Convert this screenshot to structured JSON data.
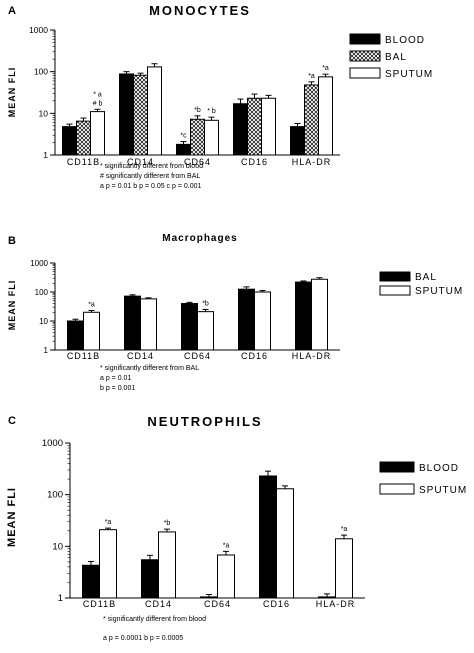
{
  "chart_data": [
    {
      "type": "bar",
      "panel_letter": "A",
      "title": "MONOCYTES",
      "ylabel": "MEAN FLI",
      "yscale": "log",
      "ylim": [
        1,
        1000
      ],
      "yticks": [
        "1",
        "10",
        "100",
        "1000"
      ],
      "categories": [
        "CD11B",
        "CD14",
        "CD64",
        "CD16",
        "HLA-DR"
      ],
      "series": [
        {
          "name": "BLOOD",
          "pattern": "solid",
          "values": [
            4.8,
            88,
            1.8,
            17,
            4.8
          ],
          "errors": [
            0.7,
            12,
            0.3,
            5,
            0.9
          ]
        },
        {
          "name": "BAL",
          "pattern": "hatch",
          "values": [
            6.5,
            82,
            7.2,
            23,
            48
          ],
          "errors": [
            1.2,
            10,
            1.5,
            6,
            9
          ]
        },
        {
          "name": "SPUTUM",
          "pattern": "white",
          "values": [
            11,
            130,
            6.8,
            23,
            75
          ],
          "errors": [
            1.5,
            25,
            1.3,
            4,
            12
          ]
        }
      ],
      "annotations": [
        {
          "category": 0,
          "series": 2,
          "lines": [
            "* a",
            "# b"
          ]
        },
        {
          "category": 2,
          "series": 0,
          "lines": [
            "*c"
          ]
        },
        {
          "category": 2,
          "series": 1,
          "lines": [
            "*b"
          ]
        },
        {
          "category": 2,
          "series": 2,
          "lines": [
            "* b"
          ]
        },
        {
          "category": 4,
          "series": 1,
          "lines": [
            "*a"
          ]
        },
        {
          "category": 4,
          "series": 2,
          "lines": [
            "*a"
          ]
        }
      ],
      "legend_position": "right",
      "footnotes": [
        "* significantly different from blood",
        "# significantly different from BAL",
        "a p = 0.01 b p = 0.05 c p = 0.001"
      ]
    },
    {
      "type": "bar",
      "panel_letter": "B",
      "title": "Macrophages",
      "ylabel": "MEAN FLI",
      "yscale": "log",
      "ylim": [
        1,
        1000
      ],
      "yticks": [
        "1",
        "10",
        "100",
        "1000"
      ],
      "categories": [
        "CD11B",
        "CD14",
        "CD64",
        "CD16",
        "HLA-DR"
      ],
      "series": [
        {
          "name": "BAL",
          "pattern": "solid",
          "values": [
            10,
            72,
            40,
            125,
            220
          ],
          "errors": [
            1.5,
            8,
            4,
            25,
            20
          ]
        },
        {
          "name": "SPUTUM",
          "pattern": "white",
          "values": [
            20,
            58,
            21,
            100,
            275
          ],
          "errors": [
            3,
            5,
            4,
            12,
            35
          ]
        }
      ],
      "annotations": [
        {
          "category": 0,
          "series": 1,
          "lines": [
            "*a"
          ]
        },
        {
          "category": 2,
          "series": 1,
          "lines": [
            "*b"
          ]
        }
      ],
      "legend_position": "right",
      "footnotes": [
        "* significantly different from BAL",
        "a p = 0.01",
        "b p = 0.001"
      ]
    },
    {
      "type": "bar",
      "panel_letter": "C",
      "title": "NEUTROPHILS",
      "ylabel": "MEAN FLI",
      "yscale": "log",
      "ylim": [
        1,
        1000
      ],
      "yticks": [
        "1",
        "10",
        "100",
        "1000"
      ],
      "categories": [
        "CD11B",
        "CD14",
        "CD64",
        "CD16",
        "HLA-DR"
      ],
      "series": [
        {
          "name": "BLOOD",
          "pattern": "solid",
          "values": [
            4.3,
            5.5,
            1.05,
            230,
            1.05
          ],
          "errors": [
            0.8,
            1.2,
            0.12,
            55,
            0.15
          ]
        },
        {
          "name": "SPUTUM",
          "pattern": "white",
          "values": [
            21,
            19,
            6.8,
            130,
            14
          ],
          "errors": [
            1.5,
            2.5,
            1.2,
            18,
            2.5
          ]
        }
      ],
      "annotations": [
        {
          "category": 0,
          "series": 1,
          "lines": [
            "*a"
          ]
        },
        {
          "category": 1,
          "series": 1,
          "lines": [
            "*b"
          ]
        },
        {
          "category": 2,
          "series": 1,
          "lines": [
            "*a"
          ]
        },
        {
          "category": 4,
          "series": 1,
          "lines": [
            "*a"
          ]
        }
      ],
      "legend_position": "right",
      "footnotes": [
        "* significantly different from blood",
        "a p = 0.0001 b p = 0.0005"
      ]
    }
  ]
}
